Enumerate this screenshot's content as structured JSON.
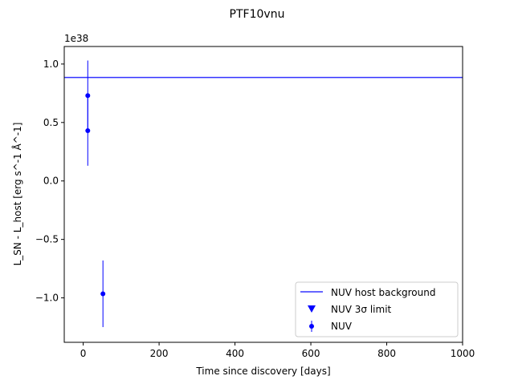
{
  "chart_data": {
    "type": "scatter",
    "title": "PTF10vnu",
    "xlabel": "Time since discovery [days]",
    "ylabel": "L_SN - L_host [erg s^-1 Å^-1]",
    "y_offset_text": "1e38",
    "xlim": [
      -50,
      1000
    ],
    "ylim": [
      -1.38,
      1.15
    ],
    "x_ticks": [
      0,
      200,
      400,
      600,
      800,
      1000
    ],
    "x_tick_labels": [
      "0",
      "200",
      "400",
      "600",
      "800",
      "1000"
    ],
    "y_ticks": [
      -1.0,
      -0.5,
      0.0,
      0.5,
      1.0
    ],
    "y_tick_labels": [
      "−1.0",
      "−0.5",
      "0.0",
      "0.5",
      "1.0"
    ],
    "grid": false,
    "legend_position": "lower-right",
    "colors": {
      "series": "#0000ff",
      "host_line": "#3333ff"
    },
    "host_background": {
      "name": "NUV host background",
      "y": 0.885
    },
    "limits": {
      "name": "NUV 3σ limit",
      "points": []
    },
    "series": [
      {
        "name": "NUV",
        "points": [
          {
            "x": 12,
            "y": 0.73,
            "yerr": 0.3
          },
          {
            "x": 12,
            "y": 0.43,
            "yerr": 0.3
          },
          {
            "x": 52,
            "y": -0.965,
            "yerr": 0.285
          }
        ]
      }
    ]
  }
}
